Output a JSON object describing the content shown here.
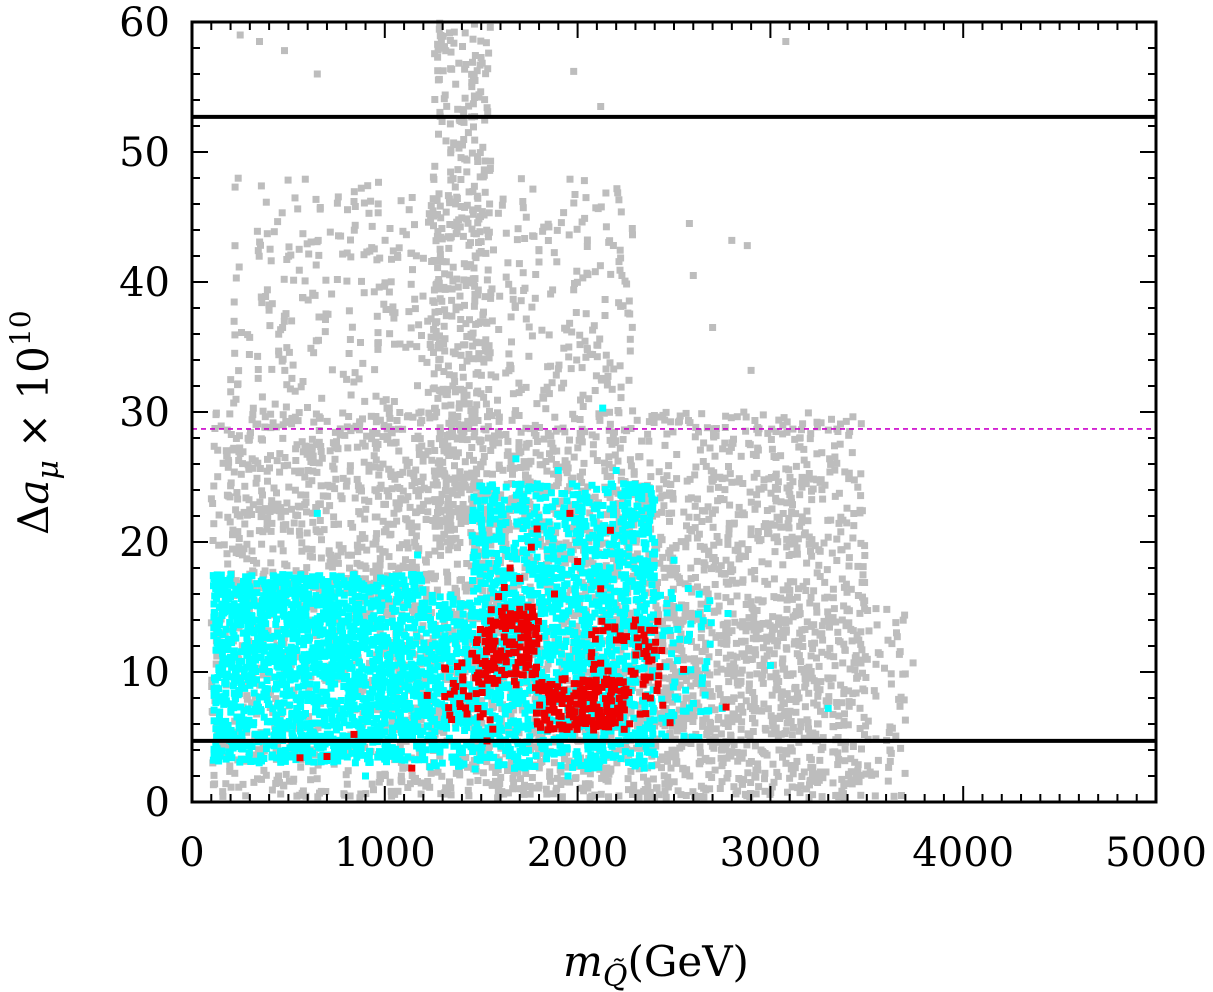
{
  "chart_data": {
    "type": "scatter",
    "title": "",
    "xlabel": "m_Q̃(GeV)",
    "xlabel_parts": {
      "var": "m",
      "sub": "Q̃",
      "unit": "(GeV)"
    },
    "ylabel": "Δa_μ × 10^10",
    "ylabel_parts": {
      "delta": "Δ",
      "var": "a",
      "sub": "μ",
      "times": "× 10",
      "exp": "10"
    },
    "xlim": [
      0,
      5000
    ],
    "ylim": [
      0,
      60
    ],
    "x_ticks": [
      0,
      1000,
      2000,
      3000,
      4000,
      5000
    ],
    "y_ticks": [
      0,
      10,
      20,
      30,
      40,
      50,
      60
    ],
    "x_tick_labels": [
      "0",
      "1000",
      "2000",
      "3000",
      "4000",
      "5000"
    ],
    "y_tick_labels": [
      "0",
      "10",
      "20",
      "30",
      "40",
      "50",
      "60"
    ],
    "reference_lines": [
      {
        "y": 52.7,
        "style": "solid",
        "color": "#000000"
      },
      {
        "y": 28.7,
        "style": "dashed",
        "color": "#cc00cc"
      },
      {
        "y": 4.7,
        "style": "solid",
        "color": "#000000"
      }
    ],
    "series": [
      {
        "color": "#bdbdbd",
        "regions": [
          {
            "x": [
              100,
              3500
            ],
            "y": [
              0.3,
              30
            ],
            "count": 2600
          },
          {
            "x": [
              200,
              2300
            ],
            "y": [
              15,
              48
            ],
            "count": 900
          },
          {
            "x": [
              1250,
              1550
            ],
            "y": [
              20,
              60
            ],
            "count": 380
          },
          {
            "x": [
              1000,
              3700
            ],
            "y": [
              0.3,
              15
            ],
            "count": 700
          },
          {
            "x": [
              2200,
              3300
            ],
            "y": [
              5,
              25
            ],
            "count": 250
          }
        ],
        "points": [
          [
            250,
            59
          ],
          [
            350,
            58.5
          ],
          [
            480,
            57.8
          ],
          [
            650,
            56
          ],
          [
            1980,
            56.2
          ],
          [
            2120,
            53.5
          ],
          [
            3080,
            58.5
          ],
          [
            2580,
            44.5
          ],
          [
            2800,
            43.2
          ],
          [
            2880,
            42.8
          ],
          [
            2600,
            40.5
          ],
          [
            2700,
            36.5
          ],
          [
            2900,
            33.2
          ],
          [
            3350,
            28.5
          ],
          [
            3740,
            10.7
          ],
          [
            3620,
            4
          ],
          [
            3560,
            3.2
          ],
          [
            3680,
            0.5
          ],
          [
            3700,
            6.3
          ]
        ]
      },
      {
        "color": "#00ffff",
        "regions": [
          {
            "x": [
              110,
              1200
            ],
            "y": [
              3.0,
              17.5
            ],
            "count": 1700
          },
          {
            "x": [
              1200,
              1450
            ],
            "y": [
              2.5,
              16
            ],
            "count": 250
          },
          {
            "x": [
              1450,
              2400
            ],
            "y": [
              2.5,
              24.5
            ],
            "count": 1400
          },
          {
            "x": [
              2400,
              2700
            ],
            "y": [
              4.5,
              16.5
            ],
            "count": 60
          }
        ],
        "points": [
          [
            650,
            22.2
          ],
          [
            1170,
            19.0
          ],
          [
            2130,
            30.3
          ],
          [
            1680,
            26.4
          ],
          [
            1900,
            25.5
          ],
          [
            2200,
            25.5
          ],
          [
            2290,
            23.8
          ],
          [
            2380,
            22.2
          ],
          [
            2500,
            18.6
          ],
          [
            2780,
            14.5
          ],
          [
            3000,
            10.5
          ],
          [
            3300,
            7.2
          ],
          [
            2480,
            13.2
          ],
          [
            2670,
            10.8
          ],
          [
            2560,
            8.6
          ],
          [
            2750,
            7.2
          ],
          [
            900,
            2.0
          ],
          [
            1950,
            2.0
          ]
        ]
      },
      {
        "color": "#ee0000",
        "regions": [
          {
            "x": [
              1470,
              1800
            ],
            "y": [
              9.0,
              15.0
            ],
            "count": 140
          },
          {
            "x": [
              1780,
              2250
            ],
            "y": [
              5.5,
              9.5
            ],
            "count": 170
          },
          {
            "x": [
              2050,
              2450
            ],
            "y": [
              6.0,
              14.0
            ],
            "count": 70
          },
          {
            "x": [
              1300,
              1550
            ],
            "y": [
              5.0,
              11.5
            ],
            "count": 30
          }
        ],
        "points": [
          [
            1650,
            18.0
          ],
          [
            1700,
            17.2
          ],
          [
            1760,
            19.6
          ],
          [
            1790,
            21.0
          ],
          [
            1960,
            22.2
          ],
          [
            2170,
            20.9
          ],
          [
            1620,
            16.5
          ],
          [
            1880,
            16.0
          ],
          [
            2000,
            18.5
          ],
          [
            1590,
            15.8
          ],
          [
            2120,
            16.4
          ],
          [
            2300,
            14.0
          ],
          [
            2400,
            13.2
          ],
          [
            2550,
            10.2
          ],
          [
            2770,
            7.3
          ],
          [
            1220,
            8.2
          ],
          [
            1400,
            10.7
          ],
          [
            1530,
            4.7
          ],
          [
            840,
            5.2
          ],
          [
            560,
            3.4
          ],
          [
            700,
            3.5
          ],
          [
            1140,
            2.6
          ],
          [
            1560,
            5.6
          ],
          [
            2480,
            6.1
          ]
        ]
      }
    ]
  }
}
